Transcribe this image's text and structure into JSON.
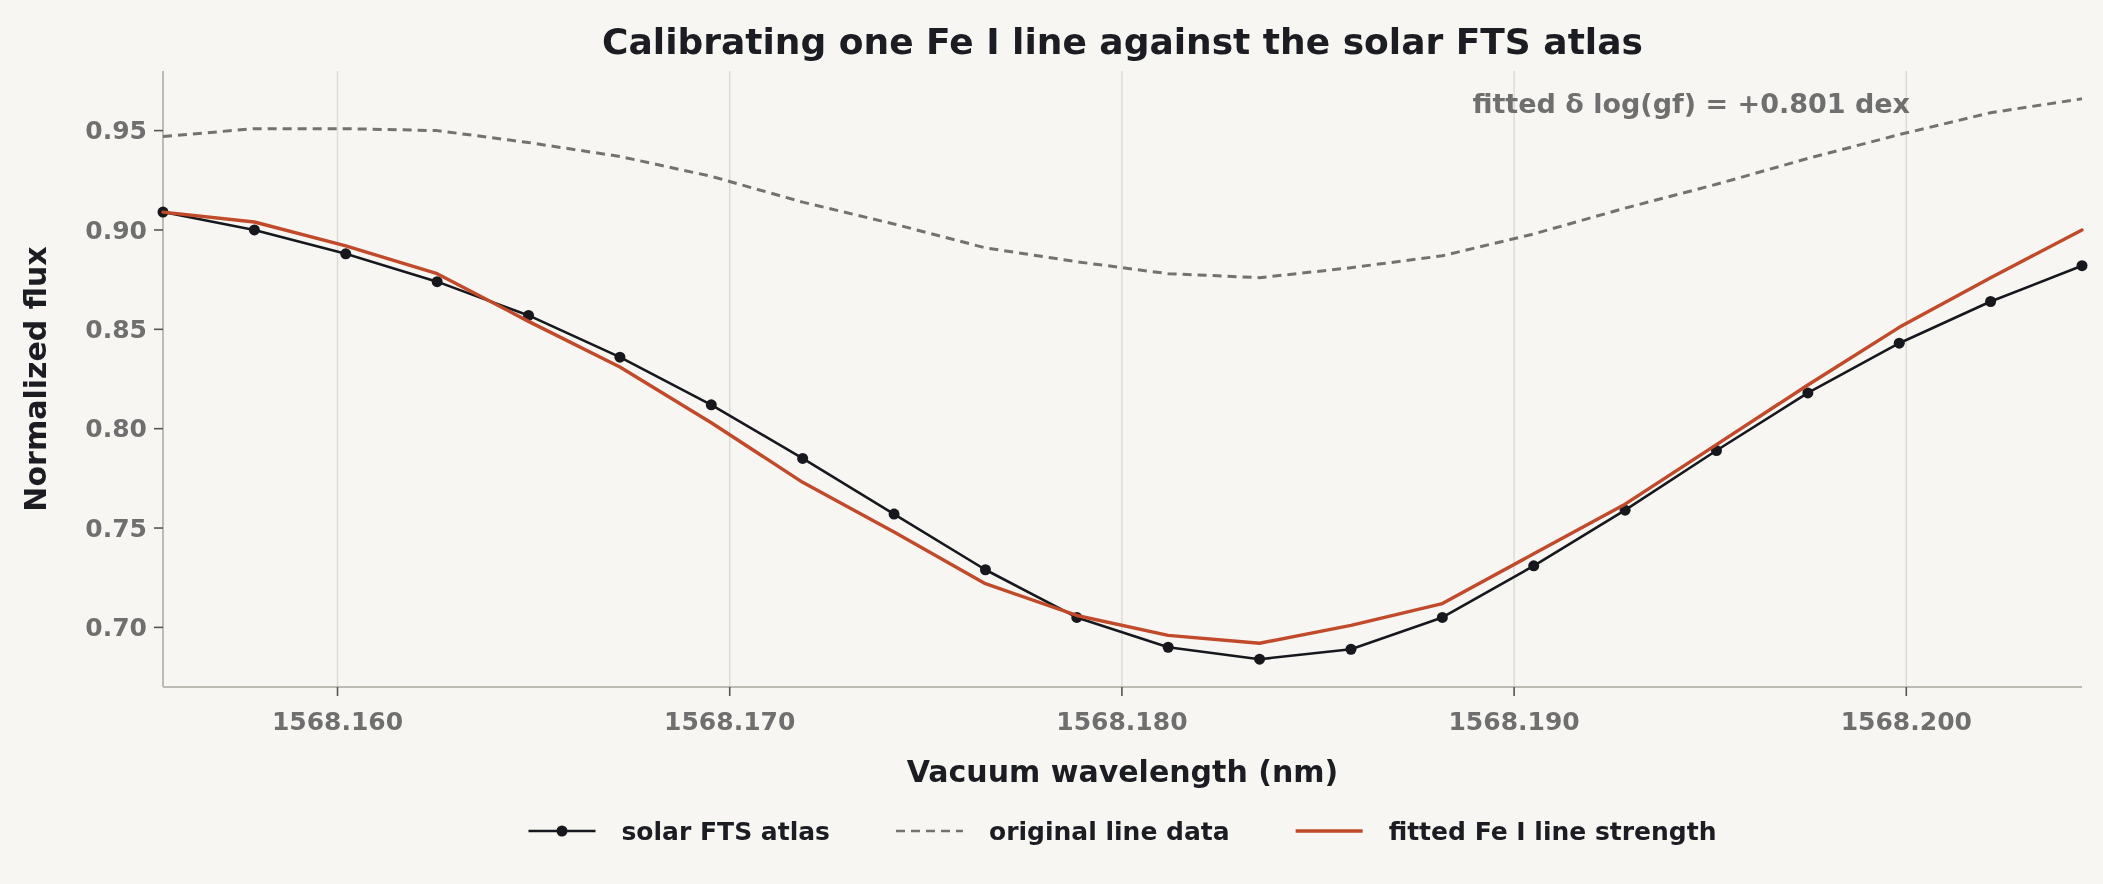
{
  "chart_data": {
    "type": "line",
    "title": "Calibrating one Fe I line against the solar FTS atlas",
    "xlabel": "Vacuum wavelength (nm)",
    "ylabel": "Normalized flux",
    "annotations": [
      "fitted δ log(gf) = +0.801 dex"
    ],
    "x": [
      1568.15555,
      1568.15788,
      1568.16021,
      1568.16254,
      1568.16487,
      1568.1672,
      1568.16953,
      1568.17186,
      1568.17419,
      1568.17652,
      1568.17885,
      1568.18118,
      1568.18351,
      1568.18584,
      1568.18817,
      1568.1905,
      1568.19283,
      1568.19516,
      1568.19749,
      1568.19982,
      1568.20215,
      1568.20448
    ],
    "series": [
      {
        "name": "solar FTS atlas",
        "color": "#16181d",
        "marker": "circle",
        "values": [
          0.909,
          0.9,
          0.888,
          0.874,
          0.857,
          0.836,
          0.812,
          0.785,
          0.757,
          0.729,
          0.705,
          0.69,
          0.684,
          0.689,
          0.705,
          0.731,
          0.759,
          0.789,
          0.818,
          0.843,
          0.864,
          0.882
        ]
      },
      {
        "name": "original line data",
        "color": "#727272",
        "line_style": "dashed",
        "values": [
          0.947,
          0.951,
          0.951,
          0.95,
          0.944,
          0.937,
          0.927,
          0.914,
          0.903,
          0.891,
          0.884,
          0.878,
          0.876,
          0.881,
          0.887,
          0.898,
          0.911,
          0.923,
          0.936,
          0.948,
          0.959,
          0.966
        ]
      },
      {
        "name": "fitted Fe I line strength",
        "color": "#c14a2a",
        "values": [
          0.909,
          0.904,
          0.892,
          0.878,
          0.854,
          0.831,
          0.803,
          0.773,
          0.748,
          0.722,
          0.706,
          0.696,
          0.692,
          0.701,
          0.712,
          0.737,
          0.762,
          0.792,
          0.822,
          0.851,
          0.876,
          0.9
        ]
      }
    ],
    "xlim": [
      1568.15555,
      1568.20448
    ],
    "ylim": [
      0.67,
      0.98
    ],
    "xticks": [
      {
        "value": 1568.16,
        "label": "1568.160"
      },
      {
        "value": 1568.17,
        "label": "1568.170"
      },
      {
        "value": 1568.18,
        "label": "1568.180"
      },
      {
        "value": 1568.19,
        "label": "1568.190"
      },
      {
        "value": 1568.2,
        "label": "1568.200"
      }
    ],
    "yticks": [
      {
        "value": 0.7,
        "label": "0.70"
      },
      0.75,
      {
        "value": 0.8,
        "label": "0.80"
      },
      0.85,
      {
        "value": 0.9,
        "label": "0.90"
      },
      0.95
    ],
    "grid": "x",
    "legend": "bottom"
  }
}
